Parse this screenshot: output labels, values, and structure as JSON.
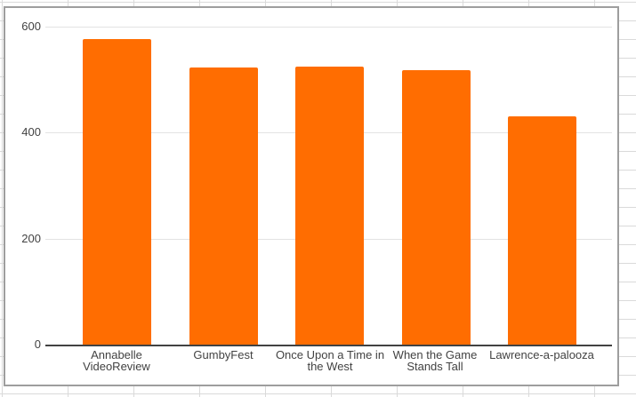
{
  "chart_data": {
    "type": "bar",
    "categories": [
      "Annabelle VideoReview",
      "GumbyFest",
      "Once Upon a Time in the West",
      "When the Game Stands Tall",
      "Lawrence-a-palooza"
    ],
    "values": [
      577,
      523,
      525,
      518,
      431
    ],
    "tick_labels": [
      "Annabelle\nVideoReview",
      "GumbyFest",
      "Once Upon a Time in\nthe West",
      "When the Game\nStands Tall",
      "Lawrence-a-palooza"
    ],
    "y_ticks": [
      "600",
      "400",
      "200",
      "0"
    ],
    "ylim": [
      0,
      600
    ],
    "grid": true,
    "legend": "none",
    "series_color": "#ff6d01",
    "colors": {
      "bar": "#ff6d01",
      "axis_text": "#424242",
      "gridline": "#e3e3e3",
      "axis_line": "#424242",
      "panel_border": "#9e9e9e"
    }
  }
}
